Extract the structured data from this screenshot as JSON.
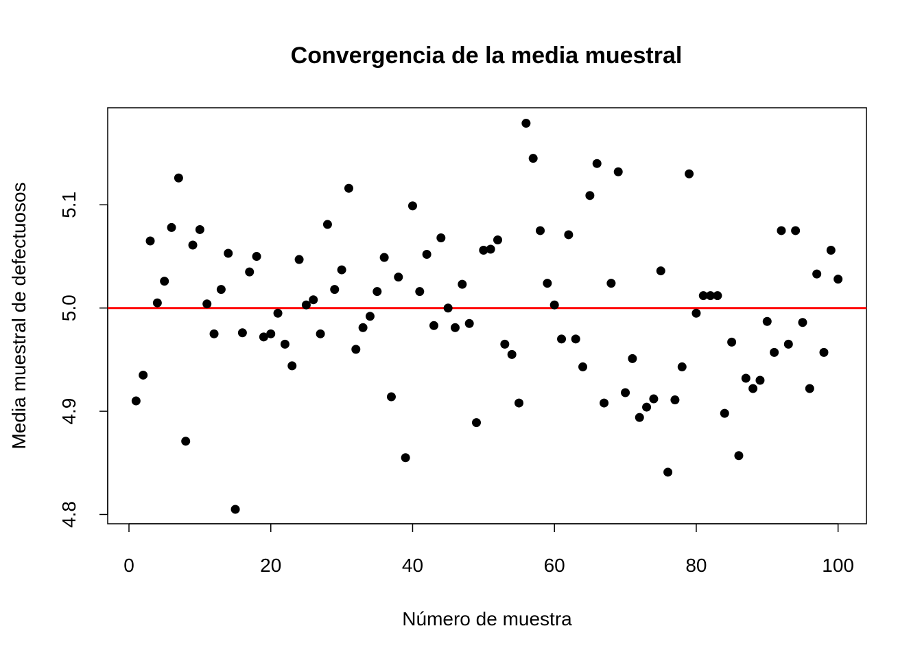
{
  "chart_data": {
    "type": "scatter",
    "title": "Convergencia de la media muestral",
    "xlabel": "Número de muestra",
    "ylabel": "Media muestral de defectuosos",
    "xlim": [
      -3,
      104
    ],
    "ylim": [
      4.791,
      5.194
    ],
    "x_ticks": [
      0,
      20,
      40,
      60,
      80,
      100
    ],
    "x_tick_labels": [
      "0",
      "20",
      "40",
      "60",
      "80",
      "100"
    ],
    "y_ticks": [
      4.8,
      4.9,
      5.0,
      5.1
    ],
    "y_tick_labels": [
      "4.8",
      "4.9",
      "5.0",
      "5.1"
    ],
    "grid": false,
    "point_color": "#000000",
    "reference_line": {
      "y": 5.0,
      "color": "#ff0000"
    },
    "x": [
      1,
      2,
      3,
      4,
      5,
      6,
      7,
      8,
      9,
      10,
      11,
      12,
      13,
      14,
      15,
      16,
      17,
      18,
      19,
      20,
      21,
      22,
      23,
      24,
      25,
      26,
      27,
      28,
      29,
      30,
      31,
      32,
      33,
      34,
      35,
      36,
      37,
      38,
      39,
      40,
      41,
      42,
      43,
      44,
      45,
      46,
      47,
      48,
      49,
      50,
      51,
      52,
      53,
      54,
      55,
      56,
      57,
      58,
      59,
      60,
      61,
      62,
      63,
      64,
      65,
      66,
      67,
      68,
      69,
      70,
      71,
      72,
      73,
      74,
      75,
      76,
      77,
      78,
      79,
      80,
      81,
      82,
      83,
      84,
      85,
      86,
      87,
      88,
      89,
      90,
      91,
      92,
      93,
      94,
      95,
      96,
      97,
      98,
      99,
      100
    ],
    "y": [
      4.91,
      4.935,
      5.065,
      5.005,
      5.026,
      5.078,
      5.126,
      4.871,
      5.061,
      5.076,
      5.004,
      4.975,
      5.018,
      5.053,
      4.805,
      4.976,
      5.035,
      5.05,
      4.972,
      4.975,
      4.995,
      4.965,
      4.944,
      5.047,
      5.003,
      5.008,
      4.975,
      5.081,
      5.018,
      5.037,
      5.116,
      4.96,
      4.981,
      4.992,
      5.016,
      5.049,
      4.914,
      5.03,
      4.855,
      5.099,
      5.016,
      5.052,
      4.983,
      5.068,
      5.0,
      4.981,
      5.023,
      4.985,
      4.889,
      5.056,
      5.057,
      5.066,
      4.965,
      4.955,
      4.908,
      5.179,
      5.145,
      5.075,
      5.024,
      5.003,
      4.97,
      5.071,
      4.97,
      4.943,
      5.109,
      5.14,
      4.908,
      5.024,
      5.132,
      4.918,
      4.951,
      4.894,
      4.904,
      4.912,
      5.036,
      4.841,
      4.911,
      4.943,
      5.13,
      4.995,
      5.012,
      5.012,
      5.012,
      4.898,
      4.967,
      4.857,
      4.932,
      4.922,
      4.93,
      4.987,
      4.957,
      5.075,
      4.965,
      5.075,
      4.986,
      4.922,
      5.033,
      4.957,
      5.056,
      5.028
    ]
  }
}
